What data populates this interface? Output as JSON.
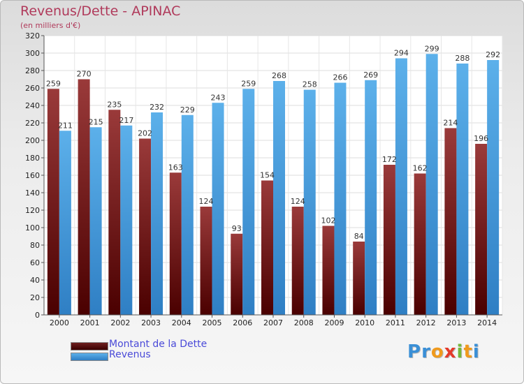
{
  "header": {
    "title": "Revenus/Dette - APINAC",
    "subtitle": "(en milliers d'€)"
  },
  "legend": {
    "items": [
      {
        "label": "Montant de la Dette",
        "color": "#6e1f1f"
      },
      {
        "label": "Revenus",
        "color": "#4ea3e0"
      }
    ]
  },
  "logo": {
    "letters": [
      {
        "ch": "P",
        "color": "#3a8fd6"
      },
      {
        "ch": "r",
        "color": "#3a8fd6"
      },
      {
        "ch": "o",
        "color": "#f09a1c"
      },
      {
        "ch": "x",
        "color": "#e43a2a"
      },
      {
        "ch": "i",
        "color": "#74b83a"
      },
      {
        "ch": "t",
        "color": "#f09a1c"
      },
      {
        "ch": "i",
        "color": "#3a8fd6"
      }
    ]
  },
  "chart_data": {
    "type": "bar",
    "title": "Revenus/Dette - APINAC",
    "subtitle": "(en milliers d'€)",
    "categories": [
      "2000",
      "2001",
      "2002",
      "2003",
      "2004",
      "2005",
      "2006",
      "2007",
      "2008",
      "2009",
      "2010",
      "2011",
      "2012",
      "2013",
      "2014"
    ],
    "series": [
      {
        "name": "Montant de la Dette",
        "color": "#6e1f1f",
        "values": [
          259,
          270,
          235,
          202,
          163,
          124,
          93,
          154,
          124,
          102,
          84,
          172,
          162,
          214,
          196
        ]
      },
      {
        "name": "Revenus",
        "color": "#4ea3e0",
        "values": [
          211,
          215,
          217,
          232,
          229,
          243,
          259,
          268,
          258,
          266,
          269,
          294,
          299,
          288,
          292
        ]
      }
    ],
    "ylim": [
      0,
      320
    ],
    "yticks": [
      0,
      20,
      40,
      60,
      80,
      100,
      120,
      140,
      160,
      180,
      200,
      220,
      240,
      260,
      280,
      300,
      320
    ],
    "grid": true,
    "legend_position": "bottom-left"
  }
}
